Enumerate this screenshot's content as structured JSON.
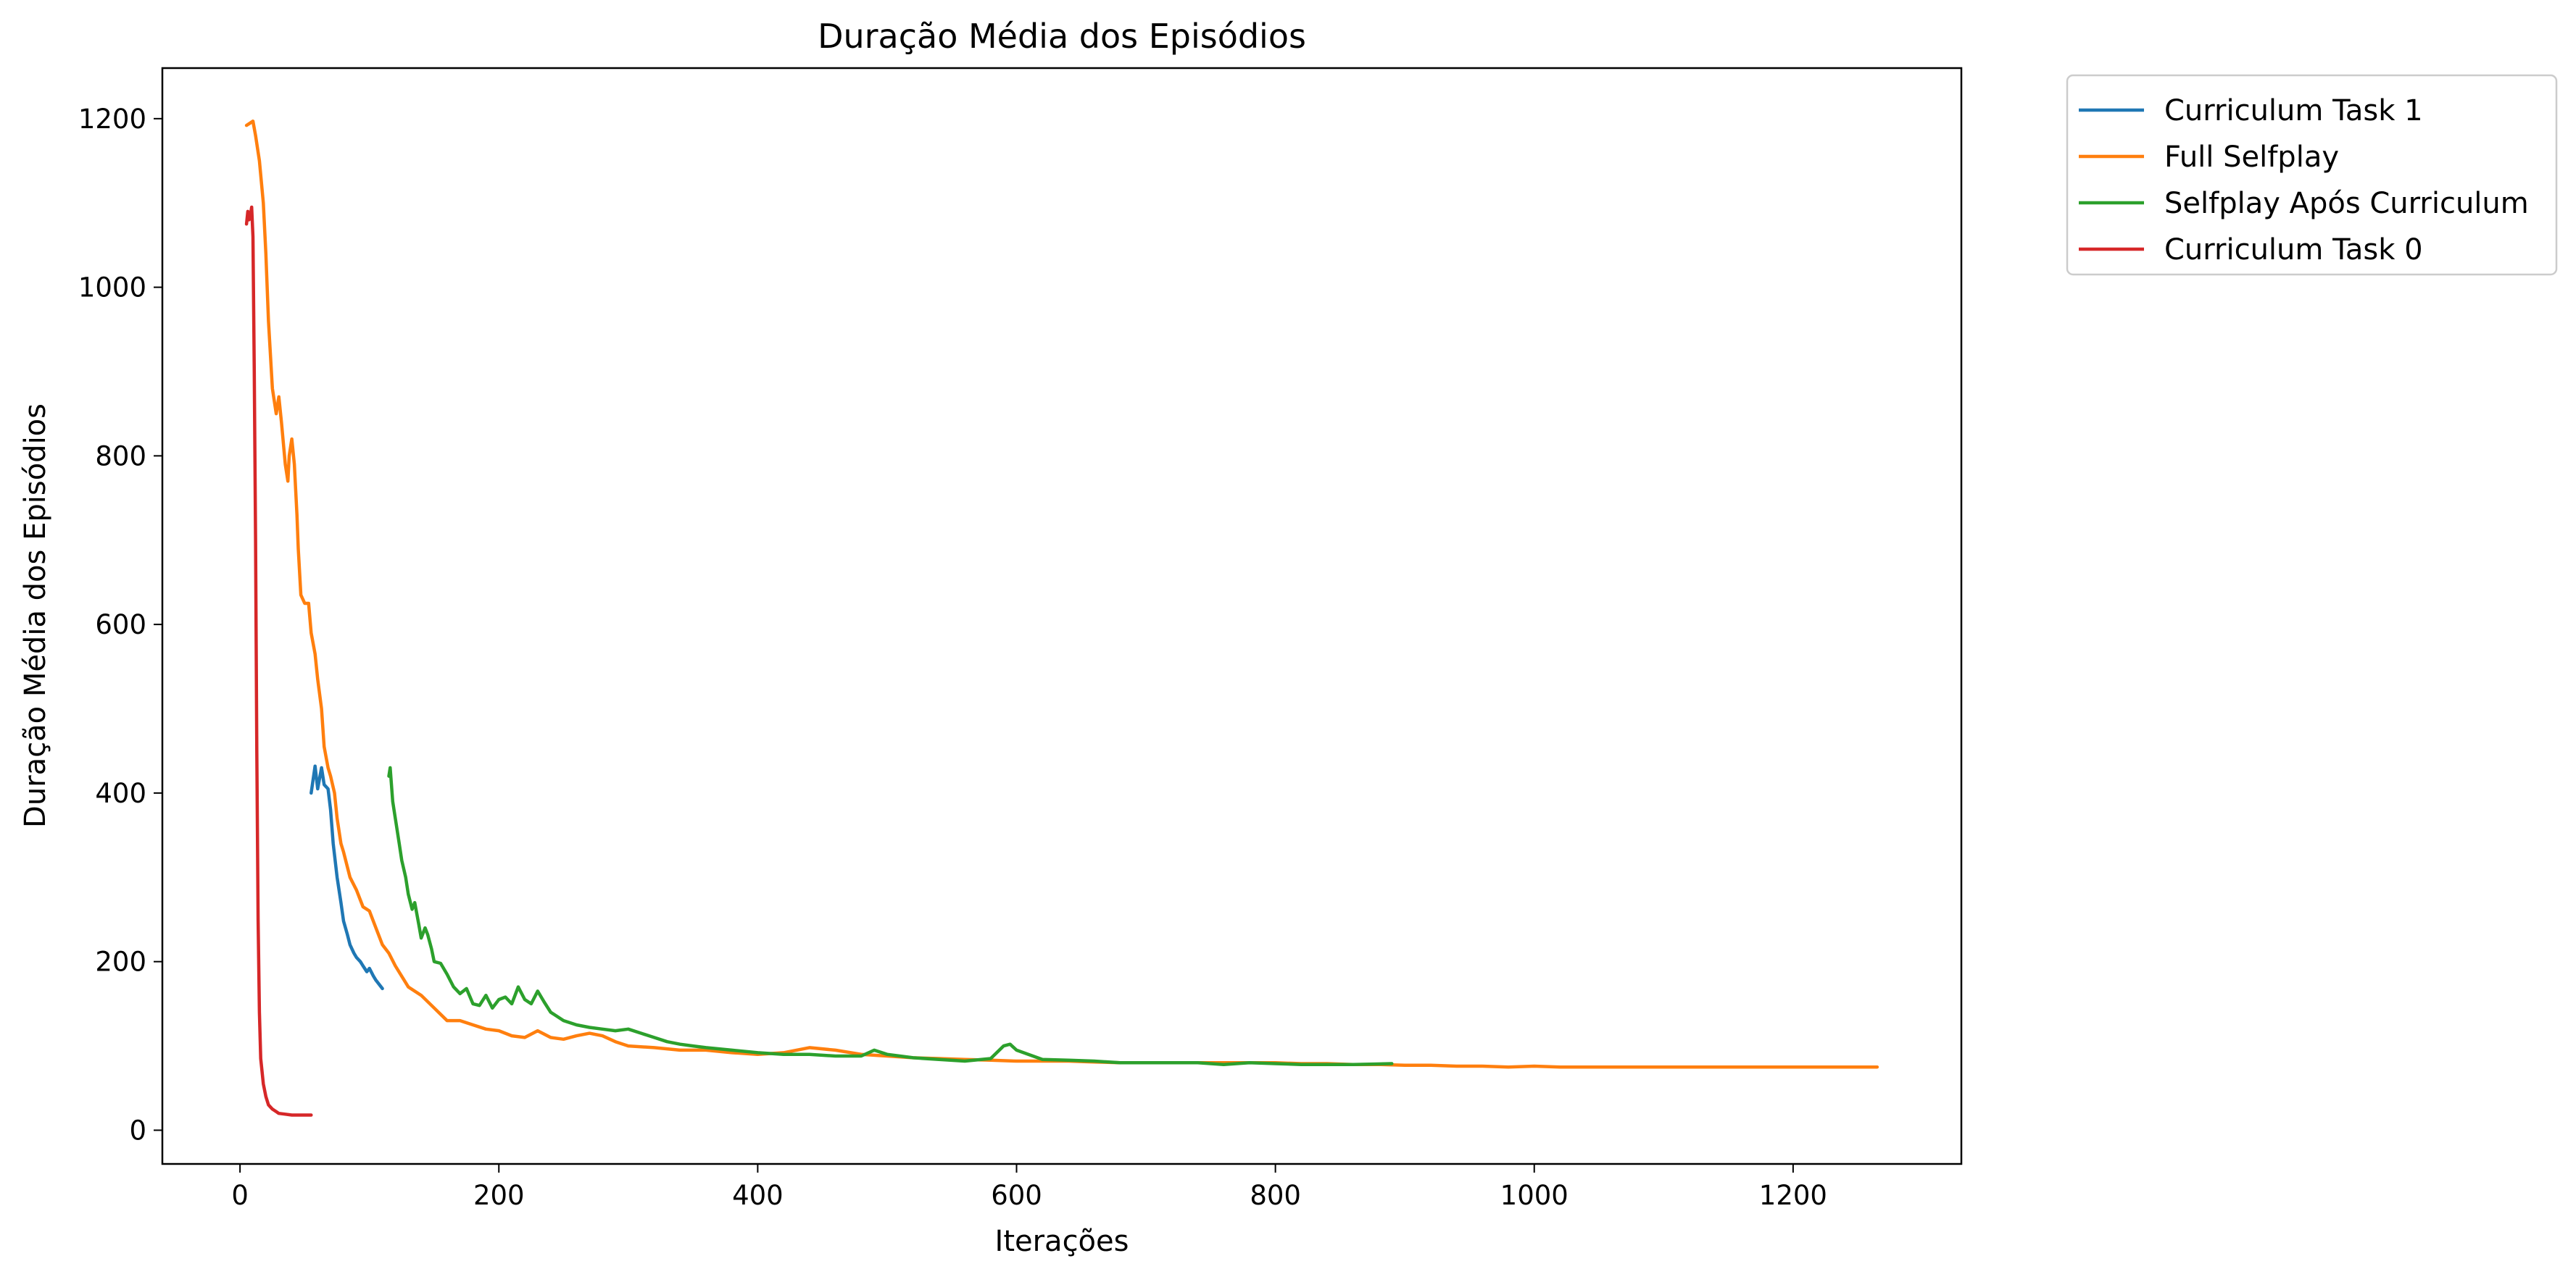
{
  "chart_data": {
    "type": "line",
    "title": "Duração Média dos Episódios",
    "xlabel": "Iterações",
    "ylabel": "Duração Média dos Episódios",
    "xlim": [
      -60,
      1330
    ],
    "ylim": [
      -40,
      1260
    ],
    "xticks": [
      0,
      200,
      400,
      600,
      800,
      1000,
      1200
    ],
    "yticks": [
      0,
      200,
      400,
      600,
      800,
      1000,
      1200
    ],
    "grid": false,
    "legend_position": "outside top-right",
    "series": [
      {
        "name": "Curriculum Task 1",
        "color": "#1f77b4",
        "x": [
          55,
          58,
          60,
          63,
          65,
          68,
          70,
          72,
          75,
          78,
          80,
          83,
          85,
          88,
          90,
          93,
          95,
          98,
          100,
          103,
          105,
          108,
          110
        ],
        "y": [
          400,
          432,
          405,
          430,
          410,
          405,
          380,
          340,
          300,
          270,
          248,
          232,
          220,
          210,
          205,
          200,
          195,
          188,
          192,
          183,
          178,
          172,
          168
        ]
      },
      {
        "name": "Full Selfplay",
        "color": "#ff7f0e",
        "x": [
          5,
          8,
          10,
          12,
          15,
          18,
          20,
          22,
          25,
          28,
          30,
          32,
          35,
          37,
          38,
          40,
          42,
          44,
          45,
          47,
          50,
          53,
          55,
          58,
          60,
          63,
          65,
          68,
          70,
          73,
          75,
          78,
          80,
          85,
          90,
          95,
          100,
          105,
          110,
          115,
          120,
          130,
          140,
          150,
          160,
          170,
          180,
          190,
          200,
          210,
          220,
          230,
          240,
          250,
          260,
          270,
          280,
          290,
          300,
          320,
          340,
          360,
          380,
          400,
          420,
          440,
          460,
          480,
          500,
          520,
          540,
          560,
          580,
          600,
          620,
          640,
          660,
          680,
          700,
          720,
          740,
          760,
          780,
          800,
          820,
          840,
          860,
          880,
          900,
          920,
          940,
          960,
          980,
          1000,
          1020,
          1040,
          1060,
          1080,
          1100,
          1120,
          1140,
          1160,
          1180,
          1200,
          1220,
          1240,
          1265
        ],
        "y": [
          1192,
          1195,
          1197,
          1180,
          1150,
          1100,
          1040,
          960,
          880,
          850,
          870,
          840,
          790,
          770,
          800,
          820,
          790,
          730,
          690,
          635,
          625,
          625,
          590,
          565,
          535,
          500,
          455,
          430,
          420,
          400,
          370,
          340,
          330,
          300,
          285,
          265,
          260,
          240,
          220,
          210,
          195,
          170,
          160,
          145,
          130,
          130,
          125,
          120,
          118,
          112,
          110,
          118,
          110,
          108,
          112,
          115,
          112,
          105,
          100,
          98,
          95,
          95,
          92,
          90,
          92,
          98,
          95,
          90,
          88,
          86,
          85,
          84,
          83,
          82,
          82,
          82,
          81,
          80,
          80,
          80,
          80,
          80,
          80,
          80,
          79,
          79,
          78,
          78,
          77,
          77,
          76,
          76,
          75,
          76,
          75,
          75,
          75,
          75,
          75,
          75,
          75,
          75,
          75,
          75,
          75,
          75,
          75
        ]
      },
      {
        "name": "Selfplay Após Curriculum",
        "color": "#2ca02c",
        "x": [
          115,
          116,
          118,
          120,
          123,
          125,
          128,
          130,
          133,
          135,
          138,
          140,
          143,
          145,
          148,
          150,
          155,
          160,
          165,
          170,
          175,
          180,
          185,
          190,
          195,
          200,
          205,
          210,
          215,
          220,
          225,
          230,
          235,
          240,
          250,
          260,
          270,
          280,
          290,
          300,
          310,
          320,
          330,
          340,
          350,
          360,
          380,
          400,
          420,
          440,
          460,
          480,
          490,
          500,
          520,
          540,
          560,
          580,
          590,
          595,
          600,
          620,
          640,
          660,
          680,
          700,
          720,
          740,
          760,
          780,
          800,
          820,
          840,
          860,
          890
        ],
        "y": [
          420,
          430,
          390,
          370,
          340,
          320,
          300,
          280,
          262,
          270,
          245,
          228,
          240,
          232,
          215,
          200,
          198,
          185,
          170,
          162,
          168,
          150,
          148,
          160,
          145,
          155,
          158,
          150,
          170,
          155,
          150,
          165,
          152,
          140,
          130,
          125,
          122,
          120,
          118,
          120,
          115,
          110,
          105,
          102,
          100,
          98,
          95,
          92,
          90,
          90,
          88,
          88,
          95,
          90,
          86,
          84,
          82,
          85,
          100,
          102,
          95,
          84,
          83,
          82,
          80,
          80,
          80,
          80,
          78,
          80,
          79,
          78,
          78,
          78,
          79
        ]
      },
      {
        "name": "Curriculum Task 0",
        "color": "#d62728",
        "x": [
          5,
          6,
          7,
          8,
          9,
          10,
          11,
          12,
          13,
          14,
          15,
          16,
          18,
          20,
          22,
          25,
          28,
          30,
          35,
          40,
          45,
          50,
          55
        ],
        "y": [
          1075,
          1090,
          1080,
          1085,
          1095,
          1060,
          900,
          700,
          450,
          250,
          140,
          85,
          55,
          40,
          30,
          25,
          22,
          20,
          19,
          18,
          18,
          18,
          18
        ]
      }
    ]
  }
}
